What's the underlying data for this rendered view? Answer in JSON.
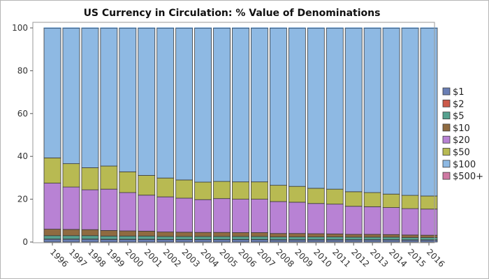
{
  "chart_data": {
    "type": "bar",
    "stacked": true,
    "title": "US Currency in Circulation: % Value of Denominations",
    "xlabel": "",
    "ylabel": "",
    "ylim": [
      0,
      100
    ],
    "yticks": [
      0,
      20,
      40,
      60,
      80,
      100
    ],
    "grid": false,
    "legend_position": "right",
    "categories": [
      "1996",
      "1997",
      "1998",
      "1999",
      "2000",
      "2001",
      "2002",
      "2003",
      "2004",
      "2005",
      "2006",
      "2007",
      "2008",
      "2009",
      "2010",
      "2011",
      "2012",
      "2013",
      "2014",
      "2015",
      "2016"
    ],
    "series": [
      {
        "name": "$1",
        "color": "#6a7fb5",
        "values": [
          1.3,
          1.3,
          1.3,
          1.2,
          1.2,
          1.2,
          1.1,
          1.1,
          1.1,
          1.1,
          1.1,
          1.1,
          1.0,
          1.0,
          1.0,
          1.0,
          1.0,
          1.0,
          1.0,
          0.9,
          0.9
        ]
      },
      {
        "name": "$2",
        "color": "#cc5a4a",
        "values": [
          0.1,
          0.1,
          0.1,
          0.1,
          0.1,
          0.1,
          0.1,
          0.1,
          0.1,
          0.1,
          0.1,
          0.1,
          0.1,
          0.1,
          0.1,
          0.1,
          0.1,
          0.1,
          0.1,
          0.1,
          0.1
        ]
      },
      {
        "name": "$5",
        "color": "#56a18f",
        "values": [
          1.6,
          1.6,
          1.6,
          1.5,
          1.5,
          1.5,
          1.4,
          1.4,
          1.4,
          1.4,
          1.4,
          1.4,
          1.3,
          1.3,
          1.3,
          1.3,
          1.2,
          1.2,
          1.2,
          1.1,
          1.1
        ]
      },
      {
        "name": "$10",
        "color": "#8f6b41",
        "values": [
          3.0,
          2.9,
          2.8,
          2.6,
          2.4,
          2.3,
          2.1,
          2.0,
          1.9,
          1.9,
          1.8,
          1.8,
          1.6,
          1.6,
          1.5,
          1.4,
          1.3,
          1.3,
          1.2,
          1.2,
          1.1
        ]
      },
      {
        "name": "$20",
        "color": "#b882d4",
        "values": [
          21.5,
          19.8,
          18.6,
          19.3,
          17.9,
          16.8,
          16.4,
          15.9,
          15.3,
          15.8,
          15.6,
          15.6,
          14.9,
          14.6,
          14.1,
          13.9,
          13.1,
          12.9,
          12.6,
          12.3,
          12.2
        ]
      },
      {
        "name": "$50",
        "color": "#b8ba52",
        "values": [
          11.8,
          10.9,
          10.3,
          10.8,
          9.7,
          9.2,
          8.8,
          8.5,
          8.2,
          8.0,
          8.1,
          8.1,
          7.6,
          7.4,
          7.1,
          7.0,
          6.8,
          6.6,
          6.3,
          6.2,
          6.1
        ]
      },
      {
        "name": "$100",
        "color": "#8eb9e3",
        "values": [
          60.5,
          63.2,
          65.1,
          64.3,
          67.0,
          68.7,
          69.9,
          70.8,
          71.8,
          71.5,
          71.7,
          71.7,
          73.3,
          73.8,
          74.7,
          75.1,
          76.3,
          76.7,
          77.4,
          78.0,
          78.3
        ]
      },
      {
        "name": "$500+",
        "color": "#cf79a3",
        "values": [
          0.2,
          0.2,
          0.2,
          0.2,
          0.2,
          0.2,
          0.2,
          0.2,
          0.2,
          0.2,
          0.2,
          0.2,
          0.2,
          0.2,
          0.2,
          0.2,
          0.2,
          0.2,
          0.2,
          0.2,
          0.2
        ]
      }
    ]
  }
}
